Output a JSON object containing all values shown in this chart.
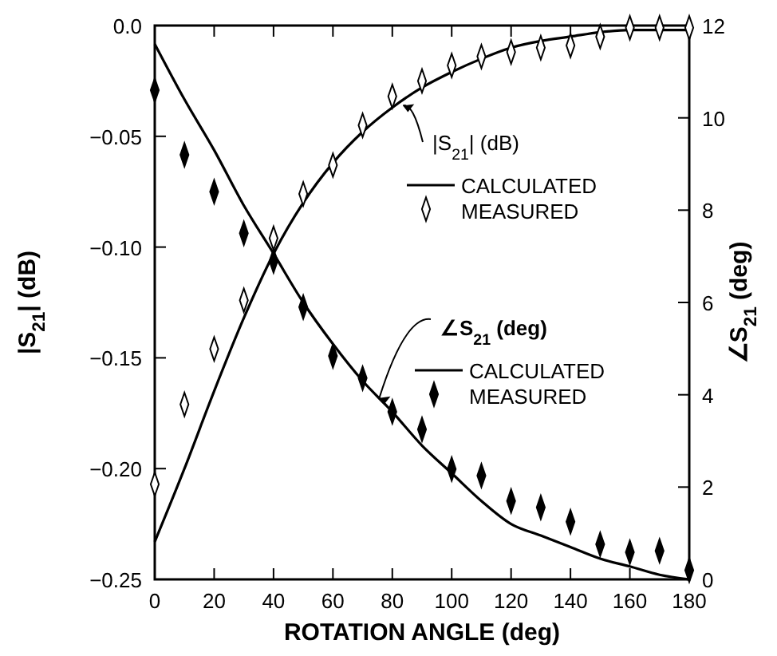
{
  "chart_data": {
    "type": "line",
    "xlabel": "ROTATION ANGLE (deg)",
    "ylabel": "|S$_{21}$| (dB)",
    "y2label": "∠S$_{21}$ (deg)",
    "x": [
      0,
      10,
      20,
      30,
      40,
      50,
      60,
      70,
      80,
      90,
      100,
      110,
      120,
      130,
      140,
      150,
      160,
      170,
      180
    ],
    "xlim": [
      0,
      180
    ],
    "xticks": [
      0,
      20,
      40,
      60,
      80,
      100,
      120,
      140,
      160,
      180
    ],
    "ylim": [
      -0.25,
      0
    ],
    "yticks": [
      {
        "value": -0.25,
        "label": "−0.25"
      },
      {
        "value": -0.2,
        "label": "−0.20"
      },
      {
        "value": -0.15,
        "label": "−0.15"
      },
      {
        "value": -0.1,
        "label": "−0.10"
      },
      {
        "value": -0.05,
        "label": "−0.05"
      },
      {
        "value": 0,
        "label": "0.0"
      }
    ],
    "y2lim": [
      0,
      12
    ],
    "y2ticks": [
      0,
      2,
      4,
      6,
      8,
      10,
      12
    ],
    "grid": false,
    "legend": "right",
    "annotations": [
      {
        "text": "|S$_{21}$| (dB)",
        "x": 82,
        "y": -0.034
      },
      {
        "text": "∠S$_{21}$ (deg)",
        "x": 74,
        "y": -0.166
      }
    ],
    "series": [
      {
        "name": "CALCULATED",
        "color": "#000000",
        "marker": "none",
        "line_style": "solid",
        "values": [
          -0.233,
          -0.2,
          -0.165,
          -0.132,
          -0.103,
          -0.08,
          -0.062,
          -0.048,
          -0.037,
          -0.028,
          -0.021,
          -0.015,
          -0.01,
          -0.007,
          -0.005,
          -0.003,
          -0.002,
          -0.002,
          -0.002
        ]
      },
      {
        "name": "MEASURED",
        "type": "scatter",
        "color": "#ffffff",
        "marker": "diamond",
        "values": [
          -0.207,
          -0.171,
          -0.146,
          -0.124,
          -0.096,
          -0.076,
          -0.063,
          -0.045,
          -0.032,
          -0.025,
          -0.018,
          -0.014,
          -0.012,
          -0.01,
          -0.009,
          -0.005,
          -0.001,
          -0.001,
          -0.001
        ]
      },
      {
        "name": "CALCULATED",
        "axis": "y2",
        "color": "#000000",
        "marker": "none",
        "line_style": "solid",
        "values": [
          11.6,
          10.4,
          9.3,
          8.1,
          7.06,
          6.0,
          5.1,
          4.3,
          3.63,
          2.9,
          2.3,
          1.7,
          1.2,
          0.95,
          0.7,
          0.45,
          0.28,
          0.1,
          0
        ]
      },
      {
        "name": "MEASURED",
        "type": "scatter",
        "axis": "y2",
        "color": "#000000",
        "marker": "diamond",
        "values": [
          10.6,
          9.2,
          8.4,
          7.5,
          6.9,
          5.9,
          4.84,
          4.36,
          3.63,
          3.25,
          2.39,
          2.25,
          1.7,
          1.56,
          1.25,
          0.76,
          0.59,
          0.62,
          0.2
        ]
      }
    ]
  }
}
